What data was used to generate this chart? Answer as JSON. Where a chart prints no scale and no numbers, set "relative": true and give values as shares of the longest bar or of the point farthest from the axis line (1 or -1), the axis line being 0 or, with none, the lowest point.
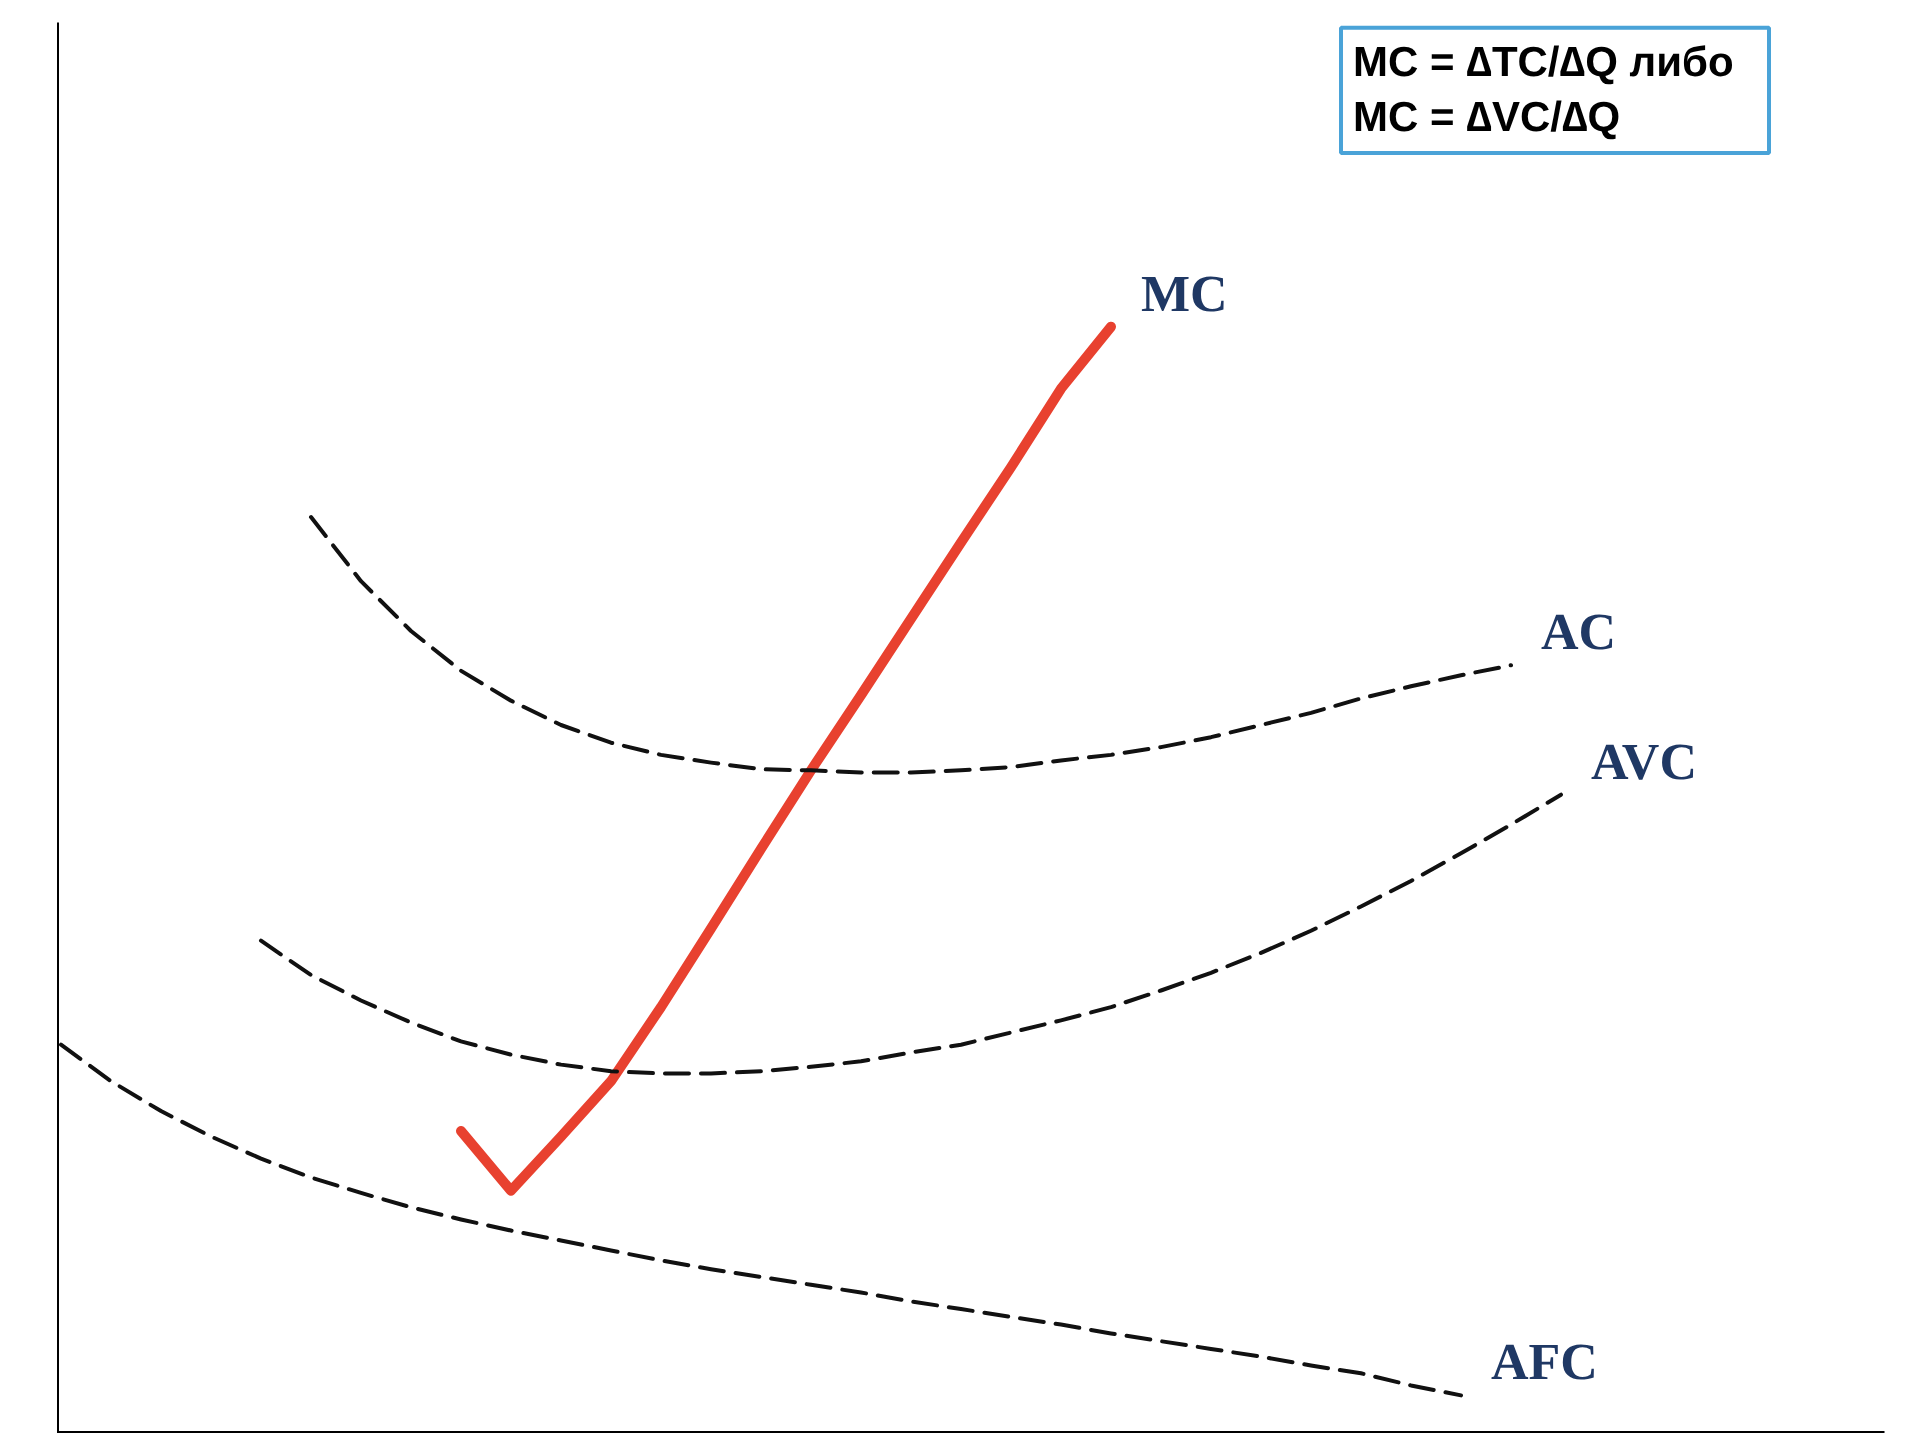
{
  "chart_data": {
    "type": "line",
    "relative": true,
    "grid": false,
    "categories": [
      null,
      null,
      null,
      null,
      null,
      null,
      null,
      null,
      null,
      null,
      null,
      null,
      null,
      null,
      null,
      null,
      null,
      null,
      null,
      null,
      null,
      null,
      null,
      null,
      null,
      null,
      null,
      null,
      null,
      null,
      null,
      null,
      null,
      null,
      null,
      null
    ],
    "annotations": [
      "MC = ∆TC/∆Q   либо\nMC = ∆VC/∆Q"
    ],
    "series": [
      {
        "name": "MC",
        "color": "#e8412f",
        "line_style": "solid",
        "values": [
          null,
          null,
          null,
          null,
          null,
          null,
          null,
          null,
          0.273,
          0.219,
          0.268,
          0.318,
          0.385,
          0.456,
          0.528,
          0.599,
          0.667,
          0.736,
          0.805,
          0.873,
          0.944,
          1.0,
          null,
          null,
          null,
          null,
          null,
          null,
          null,
          null,
          null,
          null,
          null,
          null,
          null,
          null
        ]
      },
      {
        "name": "AC",
        "color": "#111111",
        "line_style": "dashed",
        "values": [
          null,
          null,
          null,
          null,
          null,
          0.828,
          0.77,
          0.725,
          0.689,
          0.662,
          0.64,
          0.624,
          0.613,
          0.606,
          0.6,
          0.599,
          0.597,
          0.597,
          0.599,
          0.602,
          0.608,
          0.613,
          0.62,
          0.629,
          0.64,
          0.651,
          0.664,
          0.675,
          0.685,
          0.694,
          null,
          null,
          null,
          null,
          null,
          null
        ]
      },
      {
        "name": "AVC",
        "color": "#111111",
        "line_style": "dashed",
        "values": [
          null,
          null,
          null,
          null,
          0.445,
          0.414,
          0.391,
          0.371,
          0.354,
          0.342,
          0.333,
          0.327,
          0.325,
          0.325,
          0.327,
          0.331,
          0.336,
          0.344,
          0.351,
          0.362,
          0.373,
          0.385,
          0.4,
          0.416,
          0.434,
          0.454,
          0.476,
          0.499,
          0.524,
          0.55,
          0.577,
          null,
          null,
          null,
          null,
          null
        ]
      },
      {
        "name": "AFC",
        "color": "#111111",
        "line_style": "dashed",
        "values": [
          0.351,
          0.318,
          0.291,
          0.268,
          0.248,
          0.231,
          0.217,
          0.204,
          0.193,
          0.183,
          0.174,
          0.165,
          0.156,
          0.148,
          0.141,
          0.134,
          0.127,
          0.119,
          0.112,
          0.105,
          0.098,
          0.09,
          0.083,
          0.076,
          0.069,
          0.061,
          0.054,
          0.043,
          0.034,
          null,
          null,
          null,
          null,
          null,
          null,
          null
        ]
      }
    ]
  }
}
